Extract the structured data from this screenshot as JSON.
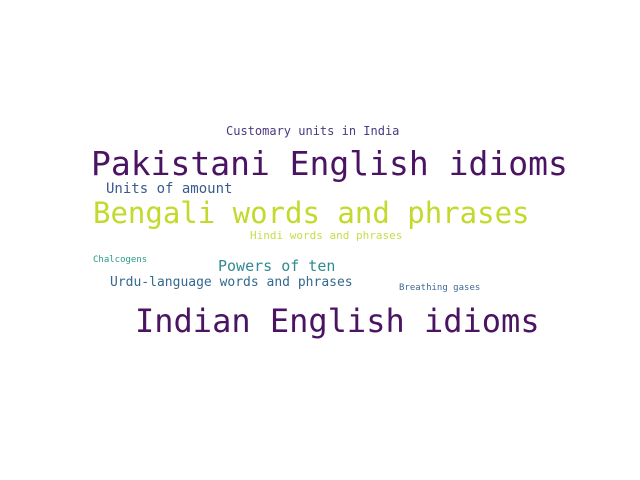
{
  "words": [
    {
      "text": "Customary units in India",
      "color": "#4a3a80"
    },
    {
      "text": "Pakistani English idioms",
      "color": "#4b1463"
    },
    {
      "text": "Units of amount",
      "color": "#3b5b8c"
    },
    {
      "text": "Bengali words and phrases",
      "color": "#c3d92c"
    },
    {
      "text": "Hindi words and phrases",
      "color": "#c7dd4a"
    },
    {
      "text": "Chalcogens",
      "color": "#2a9a8a"
    },
    {
      "text": "Powers of ten",
      "color": "#2f8a92"
    },
    {
      "text": "Urdu-language words and phrases",
      "color": "#336a8e"
    },
    {
      "text": "Breathing gases",
      "color": "#3d6a94"
    },
    {
      "text": "Indian English idioms",
      "color": "#4b1463"
    }
  ]
}
